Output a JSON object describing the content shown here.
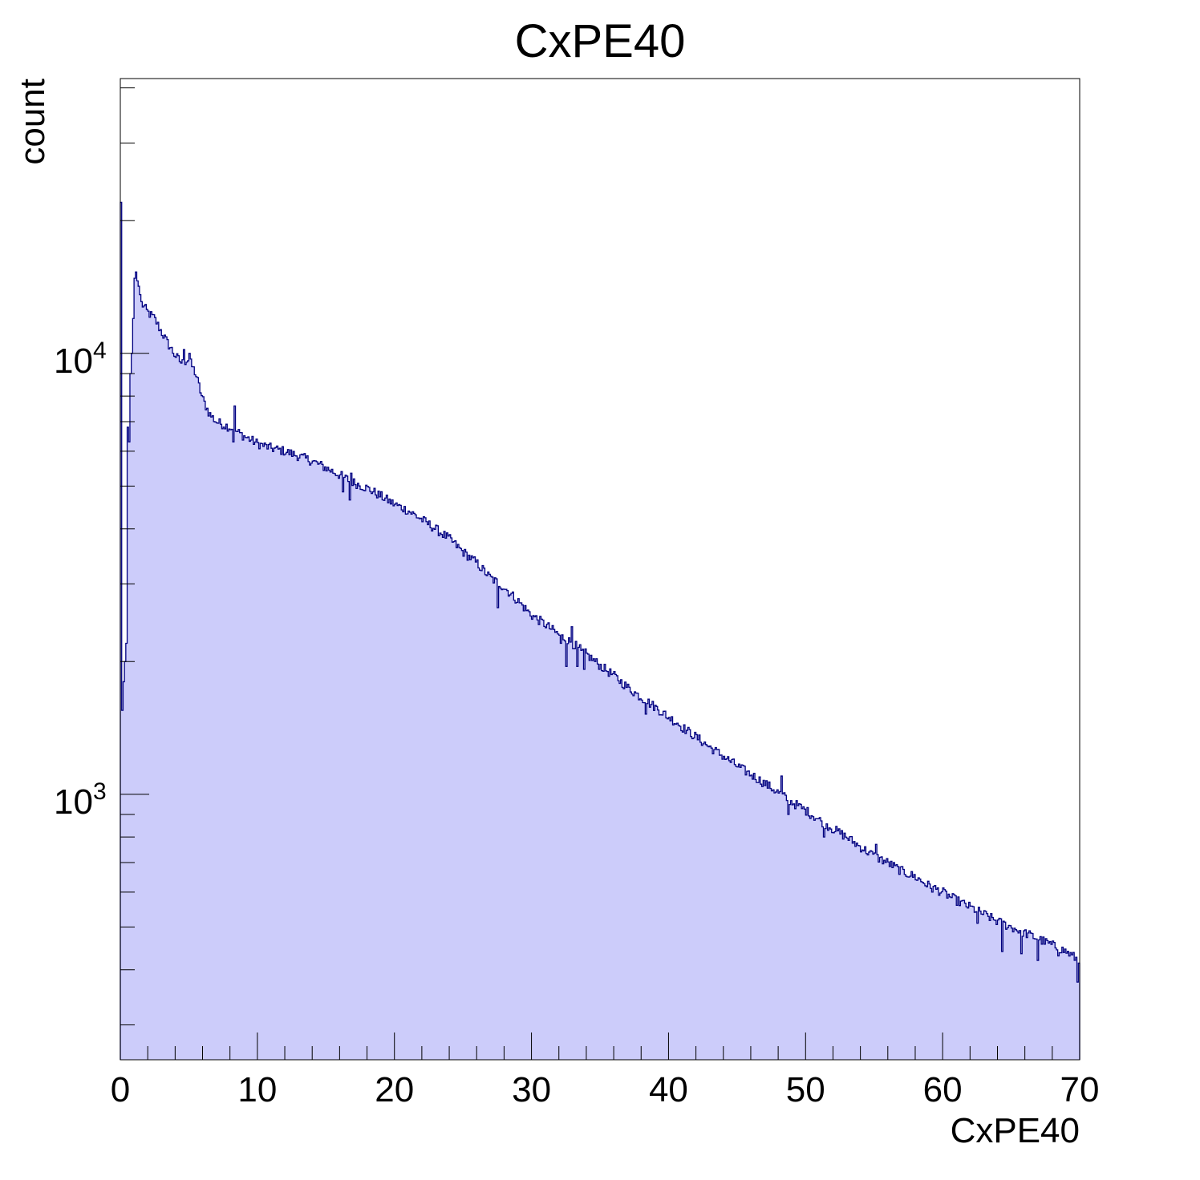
{
  "chart_data": {
    "type": "histogram",
    "title": "CxPE40",
    "xlabel": "CxPE40",
    "ylabel": "count",
    "xlim": [
      0,
      70
    ],
    "ylim": [
      250,
      42000
    ],
    "y_scale": "log",
    "x_ticks": [
      "0",
      "10",
      "20",
      "30",
      "40",
      "50",
      "60",
      "70"
    ],
    "y_ticks": [
      {
        "base": "10",
        "exp": "3"
      },
      {
        "base": "10",
        "exp": "4"
      }
    ],
    "grid": false,
    "legend": "none",
    "colors": {
      "fill": "#ccccfa",
      "line": "#000080",
      "axis": "#000000"
    },
    "bin_width": 0.1,
    "series": [
      {
        "points": [
          [
            0.05,
            22000
          ],
          [
            0.15,
            1550
          ],
          [
            0.25,
            1800
          ],
          [
            0.35,
            2950
          ],
          [
            0.45,
            1800
          ],
          [
            0.55,
            6800
          ],
          [
            0.65,
            6400
          ],
          [
            0.75,
            9000
          ],
          [
            0.85,
            10000
          ],
          [
            0.95,
            12000
          ],
          [
            1.05,
            14800
          ],
          [
            1.15,
            15300
          ],
          [
            1.25,
            14600
          ],
          [
            1.35,
            14200
          ],
          [
            1.55,
            13000
          ],
          [
            2,
            12400
          ],
          [
            2.5,
            12000
          ],
          [
            3,
            11200
          ],
          [
            3.5,
            10500
          ],
          [
            4,
            9900
          ],
          [
            4.5,
            9500
          ],
          [
            5,
            9700
          ],
          [
            5.5,
            9000
          ],
          [
            6,
            7900
          ],
          [
            6.5,
            7300
          ],
          [
            7,
            7000
          ],
          [
            7.5,
            6900
          ],
          [
            8,
            6800
          ],
          [
            9,
            6500
          ],
          [
            10,
            6250
          ],
          [
            11,
            6100
          ],
          [
            12,
            6000
          ],
          [
            13,
            5850
          ],
          [
            14,
            5700
          ],
          [
            15,
            5500
          ],
          [
            16,
            5300
          ],
          [
            17,
            5100
          ],
          [
            18,
            4950
          ],
          [
            19,
            4750
          ],
          [
            20,
            4550
          ],
          [
            21,
            4400
          ],
          [
            22,
            4200
          ],
          [
            23,
            4000
          ],
          [
            24,
            3800
          ],
          [
            25,
            3550
          ],
          [
            26,
            3350
          ],
          [
            27,
            3100
          ],
          [
            28,
            2950
          ],
          [
            29,
            2750
          ],
          [
            30,
            2550
          ],
          [
            31,
            2430
          ],
          [
            32,
            2300
          ],
          [
            33,
            2200
          ],
          [
            34,
            2080
          ],
          [
            35,
            1960
          ],
          [
            36,
            1860
          ],
          [
            37,
            1750
          ],
          [
            38,
            1660
          ],
          [
            39,
            1580
          ],
          [
            40,
            1500
          ],
          [
            41,
            1420
          ],
          [
            42,
            1350
          ],
          [
            43,
            1280
          ],
          [
            44,
            1220
          ],
          [
            45,
            1160
          ],
          [
            46,
            1110
          ],
          [
            47,
            1060
          ],
          [
            48,
            1010
          ],
          [
            49,
            960
          ],
          [
            50,
            920
          ],
          [
            51,
            875
          ],
          [
            52,
            835
          ],
          [
            53,
            800
          ],
          [
            54,
            760
          ],
          [
            55,
            725
          ],
          [
            56,
            700
          ],
          [
            57,
            670
          ],
          [
            58,
            650
          ],
          [
            59,
            620
          ],
          [
            60,
            600
          ],
          [
            61,
            575
          ],
          [
            62,
            555
          ],
          [
            63,
            535
          ],
          [
            64,
            515
          ],
          [
            65,
            500
          ],
          [
            66,
            485
          ],
          [
            67,
            470
          ],
          [
            68,
            455
          ],
          [
            69,
            440
          ],
          [
            69.95,
            420
          ]
        ],
        "spikes": [
          [
            0.35,
            2000
          ],
          [
            0.45,
            2200
          ],
          [
            0.65,
            6300
          ],
          [
            4.65,
            10200
          ],
          [
            5.05,
            10000
          ],
          [
            8.25,
            6300
          ],
          [
            8.35,
            7600
          ],
          [
            16.25,
            4850
          ],
          [
            16.75,
            4650
          ],
          [
            16.85,
            5350
          ],
          [
            27.55,
            2650
          ],
          [
            32.15,
            2200
          ],
          [
            32.55,
            1950
          ],
          [
            32.95,
            2400
          ],
          [
            33.35,
            1950
          ],
          [
            33.65,
            2120
          ],
          [
            33.85,
            1920
          ],
          [
            38.35,
            1520
          ],
          [
            39.85,
            1490
          ],
          [
            40.65,
            1450
          ],
          [
            48.25,
            1100
          ],
          [
            48.75,
            900
          ],
          [
            51.35,
            800
          ],
          [
            55.15,
            770
          ],
          [
            59.25,
            600
          ],
          [
            62.55,
            510
          ],
          [
            64.35,
            440
          ],
          [
            65.75,
            435
          ],
          [
            66.95,
            420
          ],
          [
            68.45,
            430
          ],
          [
            69.85,
            375
          ]
        ]
      }
    ]
  }
}
